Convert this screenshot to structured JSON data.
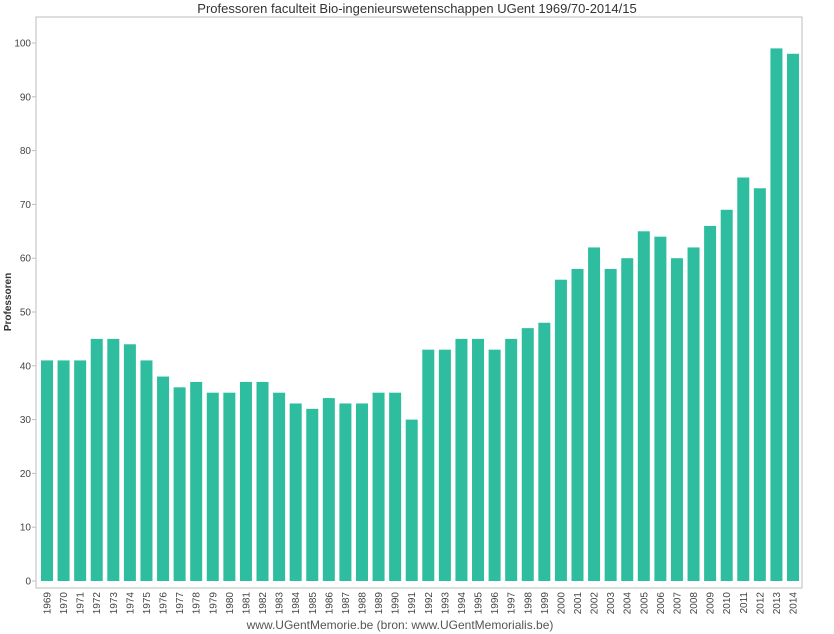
{
  "title": "Professoren faculteit Bio-ingenieurswetenschappen UGent 1969/70-2014/15",
  "footer": "www.UGentMemorie.be (bron: www.UGentMemorialis.be)",
  "colors": {
    "bar": "#2ebd9e",
    "grid": "#e6e6e6",
    "axis": "#bdbdbd"
  },
  "chart_data": {
    "type": "bar",
    "title": "Professoren faculteit Bio-ingenieurswetenschappen UGent 1969/70-2014/15",
    "xlabel": "",
    "ylabel": "Professoren",
    "ylim": [
      0,
      100
    ],
    "yticks": [
      0,
      10,
      20,
      30,
      40,
      50,
      60,
      70,
      80,
      90,
      100
    ],
    "grid": false,
    "categories": [
      "1969",
      "1970",
      "1971",
      "1972",
      "1973",
      "1974",
      "1975",
      "1976",
      "1977",
      "1978",
      "1979",
      "1980",
      "1981",
      "1982",
      "1983",
      "1984",
      "1985",
      "1986",
      "1987",
      "1988",
      "1989",
      "1990",
      "1991",
      "1992",
      "1993",
      "1994",
      "1995",
      "1996",
      "1997",
      "1998",
      "1999",
      "2000",
      "2001",
      "2002",
      "2003",
      "2004",
      "2005",
      "2006",
      "2007",
      "2008",
      "2009",
      "2010",
      "2011",
      "2012",
      "2013",
      "2014"
    ],
    "values": [
      41,
      41,
      41,
      45,
      45,
      44,
      41,
      38,
      36,
      37,
      35,
      35,
      37,
      37,
      35,
      33,
      32,
      34,
      33,
      33,
      35,
      35,
      30,
      43,
      43,
      45,
      45,
      43,
      45,
      47,
      48,
      56,
      58,
      62,
      58,
      60,
      65,
      64,
      60,
      62,
      66,
      69,
      75,
      73,
      99,
      98
    ]
  }
}
